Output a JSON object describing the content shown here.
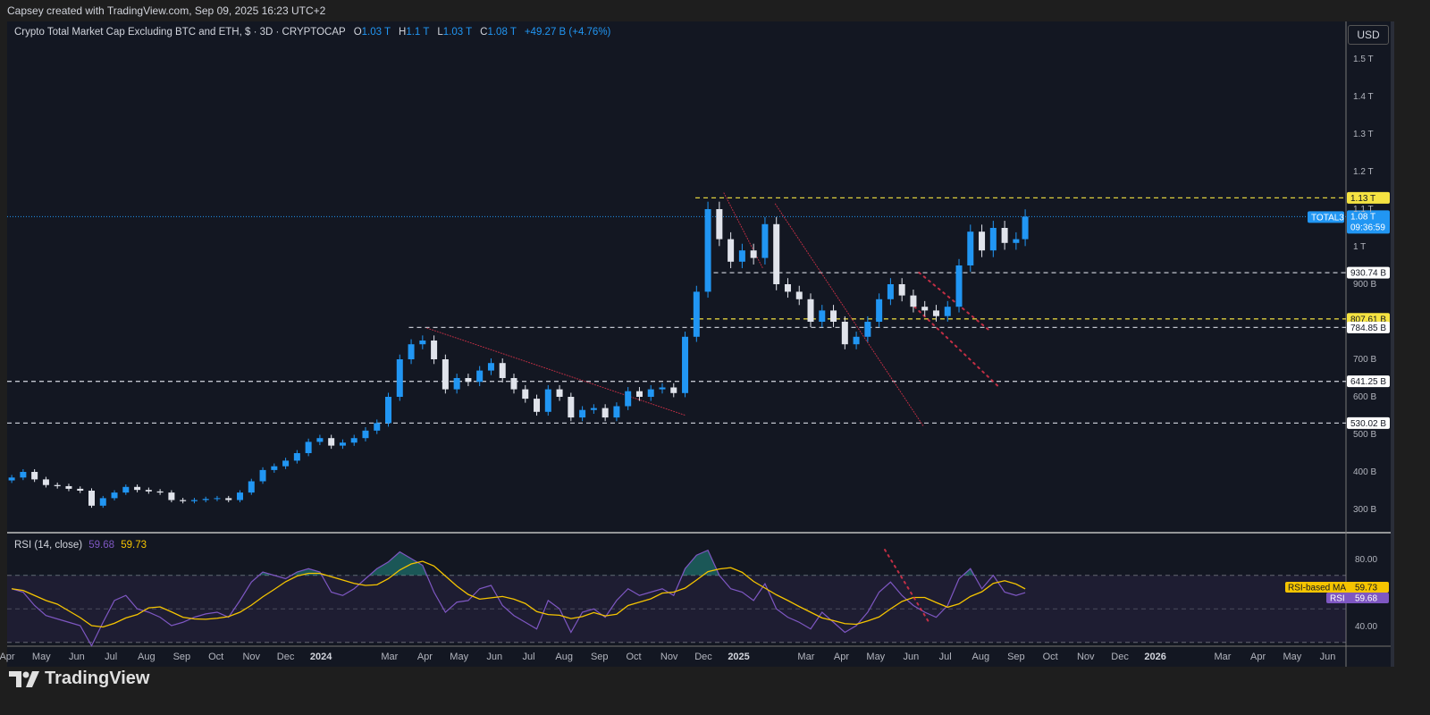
{
  "credit": "Capsey created with TradingView.com, Sep 09, 2025 16:23 UTC+2",
  "legend": {
    "title": "Crypto Total Market Cap Excluding BTC and ETH, $ · 3D · CRYPTOCAP",
    "o_label": "O",
    "o": "1.03 T",
    "h_label": "H",
    "h": "1.1 T",
    "l_label": "L",
    "l": "1.03 T",
    "c_label": "C",
    "c": "1.08 T",
    "change": "+49.27 B (+4.76%)"
  },
  "currency_button": "USD",
  "rsi_legend": {
    "label": "RSI (14, close)",
    "rsi": "59.68",
    "ma": "59.73"
  },
  "colors": {
    "background": "#131722",
    "up_candle": "#2196f3",
    "down_candle": "#e0e3eb",
    "level_yellow": "#f5e342",
    "level_white": "#e0e3eb",
    "trendline": "#e0334a",
    "rsi_line": "#7e57c2",
    "rsi_ma": "#f5c400",
    "last_price": "#2196f3"
  },
  "logo_text": "TradingView",
  "chart_data": [
    {
      "type": "candlestick",
      "title": "Crypto Total Market Cap Excluding BTC and ETH",
      "symbol": "TOTAL3",
      "unit": "B USD",
      "y_scale": "linear",
      "ylim": [
        250,
        1600
      ],
      "y_ticks": [
        {
          "value": 300,
          "label": "300 B"
        },
        {
          "value": 400,
          "label": "400 B"
        },
        {
          "value": 500,
          "label": "500 B"
        },
        {
          "value": 600,
          "label": "600 B"
        },
        {
          "value": 700,
          "label": "700 B"
        },
        {
          "value": 900,
          "label": "900 B"
        },
        {
          "value": 1000,
          "label": "1 T"
        },
        {
          "value": 1100,
          "label": "1.1 T"
        },
        {
          "value": 1200,
          "label": "1.2 T"
        },
        {
          "value": 1300,
          "label": "1.3 T"
        },
        {
          "value": 1400,
          "label": "1.4 T"
        },
        {
          "value": 1500,
          "label": "1.5 T"
        }
      ],
      "x_ticks": [
        {
          "date": "2023-04-01",
          "label": "Apr"
        },
        {
          "date": "2023-05-01",
          "label": "May"
        },
        {
          "date": "2023-06-01",
          "label": "Jun"
        },
        {
          "date": "2023-07-01",
          "label": "Jul"
        },
        {
          "date": "2023-08-01",
          "label": "Aug"
        },
        {
          "date": "2023-09-01",
          "label": "Sep"
        },
        {
          "date": "2023-10-01",
          "label": "Oct"
        },
        {
          "date": "2023-11-01",
          "label": "Nov"
        },
        {
          "date": "2023-12-01",
          "label": "Dec"
        },
        {
          "date": "2024-01-01",
          "label": "2024",
          "year": true
        },
        {
          "date": "2024-03-01",
          "label": "Mar"
        },
        {
          "date": "2024-04-01",
          "label": "Apr"
        },
        {
          "date": "2024-05-01",
          "label": "May"
        },
        {
          "date": "2024-06-01",
          "label": "Jun"
        },
        {
          "date": "2024-07-01",
          "label": "Jul"
        },
        {
          "date": "2024-08-01",
          "label": "Aug"
        },
        {
          "date": "2024-09-01",
          "label": "Sep"
        },
        {
          "date": "2024-10-01",
          "label": "Oct"
        },
        {
          "date": "2024-11-01",
          "label": "Nov"
        },
        {
          "date": "2024-12-01",
          "label": "Dec"
        },
        {
          "date": "2025-01-01",
          "label": "2025",
          "year": true
        },
        {
          "date": "2025-03-01",
          "label": "Mar"
        },
        {
          "date": "2025-04-01",
          "label": "Apr"
        },
        {
          "date": "2025-05-01",
          "label": "May"
        },
        {
          "date": "2025-06-01",
          "label": "Jun"
        },
        {
          "date": "2025-07-01",
          "label": "Jul"
        },
        {
          "date": "2025-08-01",
          "label": "Aug"
        },
        {
          "date": "2025-09-01",
          "label": "Sep"
        },
        {
          "date": "2025-10-01",
          "label": "Oct"
        },
        {
          "date": "2025-11-01",
          "label": "Nov"
        },
        {
          "date": "2025-12-01",
          "label": "Dec"
        },
        {
          "date": "2026-01-01",
          "label": "2026",
          "year": true
        },
        {
          "date": "2026-03-01",
          "label": "Mar"
        },
        {
          "date": "2026-04-01",
          "label": "Apr"
        },
        {
          "date": "2026-05-01",
          "label": "May"
        },
        {
          "date": "2026-06-01",
          "label": "Jun"
        }
      ],
      "closes": [
        [
          "2023-04-05",
          385
        ],
        [
          "2023-04-15",
          400
        ],
        [
          "2023-04-25",
          380
        ],
        [
          "2023-05-05",
          365
        ],
        [
          "2023-05-15",
          362
        ],
        [
          "2023-05-25",
          355
        ],
        [
          "2023-06-04",
          350
        ],
        [
          "2023-06-14",
          310
        ],
        [
          "2023-06-24",
          330
        ],
        [
          "2023-07-04",
          345
        ],
        [
          "2023-07-14",
          360
        ],
        [
          "2023-07-24",
          352
        ],
        [
          "2023-08-03",
          348
        ],
        [
          "2023-08-13",
          345
        ],
        [
          "2023-08-23",
          325
        ],
        [
          "2023-09-02",
          322
        ],
        [
          "2023-09-12",
          325
        ],
        [
          "2023-09-22",
          328
        ],
        [
          "2023-10-02",
          330
        ],
        [
          "2023-10-12",
          325
        ],
        [
          "2023-10-22",
          345
        ],
        [
          "2023-11-01",
          375
        ],
        [
          "2023-11-11",
          405
        ],
        [
          "2023-11-21",
          415
        ],
        [
          "2023-12-01",
          430
        ],
        [
          "2023-12-11",
          450
        ],
        [
          "2023-12-21",
          480
        ],
        [
          "2023-12-31",
          490
        ],
        [
          "2024-01-10",
          470
        ],
        [
          "2024-01-20",
          478
        ],
        [
          "2024-01-30",
          490
        ],
        [
          "2024-02-09",
          510
        ],
        [
          "2024-02-19",
          530
        ],
        [
          "2024-02-29",
          600
        ],
        [
          "2024-03-10",
          700
        ],
        [
          "2024-03-20",
          740
        ],
        [
          "2024-03-30",
          750
        ],
        [
          "2024-04-09",
          700
        ],
        [
          "2024-04-19",
          620
        ],
        [
          "2024-04-29",
          650
        ],
        [
          "2024-05-09",
          640
        ],
        [
          "2024-05-19",
          670
        ],
        [
          "2024-05-29",
          690
        ],
        [
          "2024-06-08",
          650
        ],
        [
          "2024-06-18",
          620
        ],
        [
          "2024-06-28",
          595
        ],
        [
          "2024-07-08",
          560
        ],
        [
          "2024-07-18",
          620
        ],
        [
          "2024-07-28",
          600
        ],
        [
          "2024-08-07",
          545
        ],
        [
          "2024-08-17",
          565
        ],
        [
          "2024-08-27",
          570
        ],
        [
          "2024-09-06",
          545
        ],
        [
          "2024-09-16",
          575
        ],
        [
          "2024-09-26",
          615
        ],
        [
          "2024-10-06",
          600
        ],
        [
          "2024-10-16",
          620
        ],
        [
          "2024-10-26",
          625
        ],
        [
          "2024-11-05",
          610
        ],
        [
          "2024-11-15",
          760
        ],
        [
          "2024-11-25",
          880
        ],
        [
          "2024-12-05",
          1100
        ],
        [
          "2024-12-15",
          1020
        ],
        [
          "2024-12-25",
          960
        ],
        [
          "2025-01-04",
          990
        ],
        [
          "2025-01-14",
          970
        ],
        [
          "2025-01-24",
          1060
        ],
        [
          "2025-02-03",
          900
        ],
        [
          "2025-02-13",
          880
        ],
        [
          "2025-02-23",
          860
        ],
        [
          "2025-03-05",
          800
        ],
        [
          "2025-03-15",
          830
        ],
        [
          "2025-03-25",
          800
        ],
        [
          "2025-04-04",
          740
        ],
        [
          "2025-04-14",
          760
        ],
        [
          "2025-04-24",
          800
        ],
        [
          "2025-05-04",
          860
        ],
        [
          "2025-05-14",
          900
        ],
        [
          "2025-05-24",
          870
        ],
        [
          "2025-06-03",
          840
        ],
        [
          "2025-06-13",
          830
        ],
        [
          "2025-06-23",
          815
        ],
        [
          "2025-07-03",
          840
        ],
        [
          "2025-07-13",
          950
        ],
        [
          "2025-07-23",
          1040
        ],
        [
          "2025-08-02",
          990
        ],
        [
          "2025-08-12",
          1050
        ],
        [
          "2025-08-22",
          1010
        ],
        [
          "2025-09-01",
          1020
        ],
        [
          "2025-09-09",
          1080
        ]
      ],
      "last_price": {
        "symbol_label": "TOTAL3",
        "value": 1080,
        "label": "1.08 T",
        "countdown": "09:36:59"
      },
      "levels": [
        {
          "value": 1130,
          "label": "1.13 T",
          "color": "yellow",
          "from": "2024-11-24"
        },
        {
          "value": 930.74,
          "label": "930.74 B",
          "color": "white",
          "from": "2024-12-03"
        },
        {
          "value": 807.61,
          "label": "807.61 B",
          "color": "yellow",
          "from": "2024-11-20"
        },
        {
          "value": 784.85,
          "label": "784.85 B",
          "color": "white",
          "from": "2024-03-18"
        },
        {
          "value": 641.25,
          "label": "641.25 B",
          "color": "white",
          "from": "2023-04-01"
        },
        {
          "value": 530.02,
          "label": "530.02 B",
          "color": "white",
          "from": "2023-04-01"
        }
      ],
      "trendlines": [
        {
          "from": [
            "2024-04-03",
            783
          ],
          "to": [
            "2024-11-16",
            550
          ],
          "style": "dotted"
        },
        {
          "from": [
            "2024-12-19",
            1143
          ],
          "to": [
            "2025-01-22",
            943
          ],
          "style": "dotted"
        },
        {
          "from": [
            "2025-02-02",
            1114
          ],
          "to": [
            "2025-06-12",
            521
          ],
          "style": "dotted"
        },
        {
          "from": [
            "2025-06-08",
            931
          ],
          "to": [
            "2025-08-09",
            776
          ],
          "style": "dotted-bold"
        },
        {
          "from": [
            "2025-06-04",
            840
          ],
          "to": [
            "2025-08-16",
            629
          ],
          "style": "dotted-bold"
        }
      ]
    },
    {
      "type": "line",
      "title": "RSI (14, close)",
      "ylim": [
        25,
        95
      ],
      "y_ticks": [
        {
          "value": 80,
          "label": "80.00"
        },
        {
          "value": 40,
          "label": "40.00"
        }
      ],
      "bands": {
        "upper": 70,
        "middle": 50,
        "lower": 30
      },
      "series": [
        {
          "name": "RSI",
          "last": "59.68",
          "values": [
            62,
            60,
            52,
            46,
            44,
            42,
            40,
            28,
            42,
            55,
            58,
            50,
            48,
            45,
            40,
            42,
            45,
            47,
            48,
            45,
            55,
            66,
            72,
            70,
            68,
            72,
            74,
            72,
            60,
            58,
            62,
            68,
            74,
            78,
            84,
            80,
            76,
            60,
            48,
            54,
            55,
            62,
            64,
            52,
            46,
            42,
            38,
            55,
            50,
            36,
            48,
            50,
            45,
            55,
            62,
            58,
            60,
            62,
            58,
            74,
            82,
            85,
            70,
            62,
            60,
            55,
            65,
            50,
            45,
            42,
            38,
            48,
            42,
            36,
            40,
            48,
            60,
            66,
            58,
            52,
            48,
            45,
            52,
            68,
            74,
            62,
            70,
            60,
            58,
            59.68
          ]
        },
        {
          "name": "RSI-based MA",
          "last": "59.73"
        }
      ],
      "trendlines": [
        {
          "from": [
            "2025-05-09",
            85.3
          ],
          "to": [
            "2025-06-16",
            42.7
          ],
          "style": "dotted-bold"
        }
      ]
    }
  ]
}
